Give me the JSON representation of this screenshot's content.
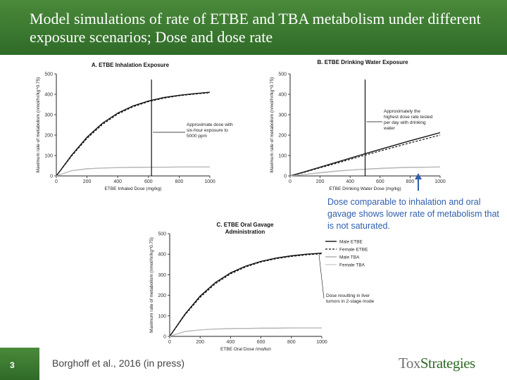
{
  "slide": {
    "title": "Model simulations of rate of ETBE and TBA metabolism under different exposure scenarios; Dose and dose rate",
    "note": "Dose comparable to inhalation and oral gavage shows lower rate of metabolism that is not saturated.",
    "page_number": "3",
    "citation": "Borghoff et al., 2016 (in press)",
    "logo_prefix": "Tox",
    "logo_suffix": "Strategies"
  },
  "colors": {
    "header_green": "#3a7a30",
    "note_blue": "#2f5fae",
    "arrow_blue": "#2f5fae"
  },
  "chart_data": [
    {
      "id": "A",
      "type": "line",
      "title": "A. ETBE Inhalation Exposure",
      "xlabel": "ETBE Inhaled Dose (mg/kg)",
      "ylabel": "Maximum rate of metabolism (nmol/hr/kg^0.75)",
      "xlim": [
        0,
        1000
      ],
      "ylim": [
        0,
        500
      ],
      "xticks": [
        "0",
        "200",
        "400",
        "600",
        "800",
        "1000"
      ],
      "yticks": [
        "0",
        "100",
        "200",
        "300",
        "400",
        "500"
      ],
      "grid": false,
      "vline": 620,
      "annotation": "Approximate dose with six-hour exposure to 5000 ppm",
      "x": [
        0,
        100,
        200,
        300,
        400,
        500,
        600,
        700,
        800,
        900,
        1000
      ],
      "series": [
        {
          "name": "Male ETBE",
          "style": "solid",
          "values": [
            0,
            102,
            190,
            258,
            308,
            343,
            367,
            384,
            395,
            403,
            410
          ]
        },
        {
          "name": "Female ETBE",
          "style": "dashed",
          "values": [
            0,
            98,
            184,
            252,
            303,
            339,
            364,
            381,
            393,
            401,
            408
          ]
        },
        {
          "name": "Male TBA",
          "style": "gray",
          "values": [
            0,
            26,
            35,
            39,
            41,
            42,
            43,
            43,
            44,
            44,
            44
          ]
        },
        {
          "name": "Female TBA",
          "style": "lightgray",
          "values": [
            0,
            25,
            34,
            38,
            40,
            41,
            42,
            42,
            43,
            43,
            43
          ]
        }
      ]
    },
    {
      "id": "B",
      "type": "line",
      "title": "B. ETBE Drinking Water Exposure",
      "xlabel": "ETBE Drinking Water Dose (mg/kg)",
      "ylabel": "Maximum rate of metabolism (nmol/hr/kg^0.75)",
      "xlim": [
        0,
        1000
      ],
      "ylim": [
        0,
        500
      ],
      "xticks": [
        "0",
        "200",
        "400",
        "600",
        "800",
        "1000"
      ],
      "yticks": [
        "0",
        "100",
        "200",
        "300",
        "400",
        "500"
      ],
      "grid": false,
      "vline": 500,
      "annotation": "Approximately the highest dose rate tested per day with drinking water",
      "x": [
        0,
        100,
        200,
        300,
        400,
        500,
        600,
        700,
        800,
        900,
        1000
      ],
      "series": [
        {
          "name": "Male ETBE",
          "style": "solid",
          "values": [
            0,
            21,
            43,
            65,
            87,
            109,
            130,
            151,
            172,
            192,
            212
          ]
        },
        {
          "name": "Female ETBE",
          "style": "dashed",
          "values": [
            0,
            19,
            40,
            60,
            81,
            102,
            122,
            142,
            162,
            181,
            200
          ]
        },
        {
          "name": "Male TBA",
          "style": "gray",
          "values": [
            0,
            8,
            16,
            23,
            29,
            33,
            37,
            40,
            42,
            43,
            44
          ]
        },
        {
          "name": "Female TBA",
          "style": "lightgray",
          "values": [
            0,
            7,
            15,
            22,
            28,
            32,
            36,
            39,
            41,
            42,
            43
          ]
        }
      ]
    },
    {
      "id": "C",
      "type": "line",
      "title": "C. ETBE Oral Gavage Administration",
      "xlabel": "ETBE Oral Dose (mg/kg)",
      "ylabel": "Maximum rate of metabolism (nmol/hr/kg^0.75)",
      "xlim": [
        0,
        1000
      ],
      "ylim": [
        0,
        500
      ],
      "xticks": [
        "0",
        "200",
        "400",
        "600",
        "800",
        "1000"
      ],
      "yticks": [
        "0",
        "100",
        "200",
        "300",
        "400",
        "500"
      ],
      "grid": false,
      "vline": null,
      "annotation": "Dose resulting in liver tumors in 2-stage mode",
      "legend_position": "right",
      "x": [
        0,
        100,
        200,
        300,
        400,
        500,
        600,
        700,
        800,
        900,
        1000
      ],
      "series": [
        {
          "name": "Male ETBE",
          "style": "solid",
          "values": [
            0,
            108,
            196,
            262,
            309,
            342,
            365,
            381,
            392,
            400,
            405
          ]
        },
        {
          "name": "Female ETBE",
          "style": "dashed",
          "values": [
            0,
            104,
            190,
            256,
            304,
            338,
            362,
            378,
            389,
            397,
            402
          ]
        },
        {
          "name": "Male TBA",
          "style": "gray",
          "values": [
            0,
            24,
            32,
            36,
            38,
            39,
            40,
            40,
            41,
            41,
            41
          ]
        },
        {
          "name": "Female TBA",
          "style": "lightgray",
          "values": [
            0,
            23,
            31,
            35,
            37,
            38,
            39,
            39,
            40,
            40,
            40
          ]
        }
      ]
    }
  ]
}
